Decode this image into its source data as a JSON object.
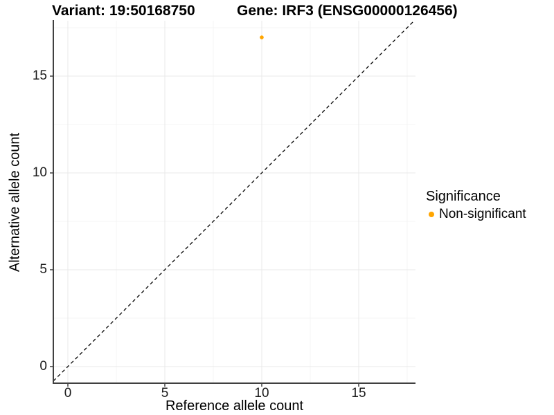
{
  "titles": {
    "variant": "Variant: 19:50168750",
    "gene": "Gene: IRF3 (ENSG00000126456)"
  },
  "chart_data": {
    "type": "scatter",
    "title": "Variant: 19:50168750   Gene: IRF3 (ENSG00000126456)",
    "xlabel": "Reference allele count",
    "ylabel": "Alternative allele count",
    "xlim": [
      -0.75,
      17.93
    ],
    "ylim": [
      -0.86,
      17.86
    ],
    "x_ticks": [
      0,
      5,
      10,
      15
    ],
    "y_ticks": [
      0,
      5,
      10,
      15
    ],
    "x_minor_ticks": [
      2.5,
      7.5,
      12.5,
      17.5
    ],
    "y_minor_ticks": [
      2.5,
      7.5,
      12.5,
      17.5
    ],
    "grid": "major-and-minor-on-white",
    "identity_line": {
      "slope": 1,
      "intercept": 0,
      "style": "dashed",
      "color": "#000000"
    },
    "series": [
      {
        "name": "Non-significant",
        "color": "#FFA500",
        "points": [
          {
            "x": 10,
            "y": 17
          }
        ]
      }
    ],
    "legend": {
      "title": "Significance",
      "position": "right",
      "entries": [
        {
          "label": "Non-significant",
          "color": "#FFA500"
        }
      ]
    },
    "colors": {
      "major_grid": "#e9e9e9",
      "minor_grid": "#f4f4f4",
      "axis_line": "#404040",
      "point": "#FFA500"
    }
  }
}
